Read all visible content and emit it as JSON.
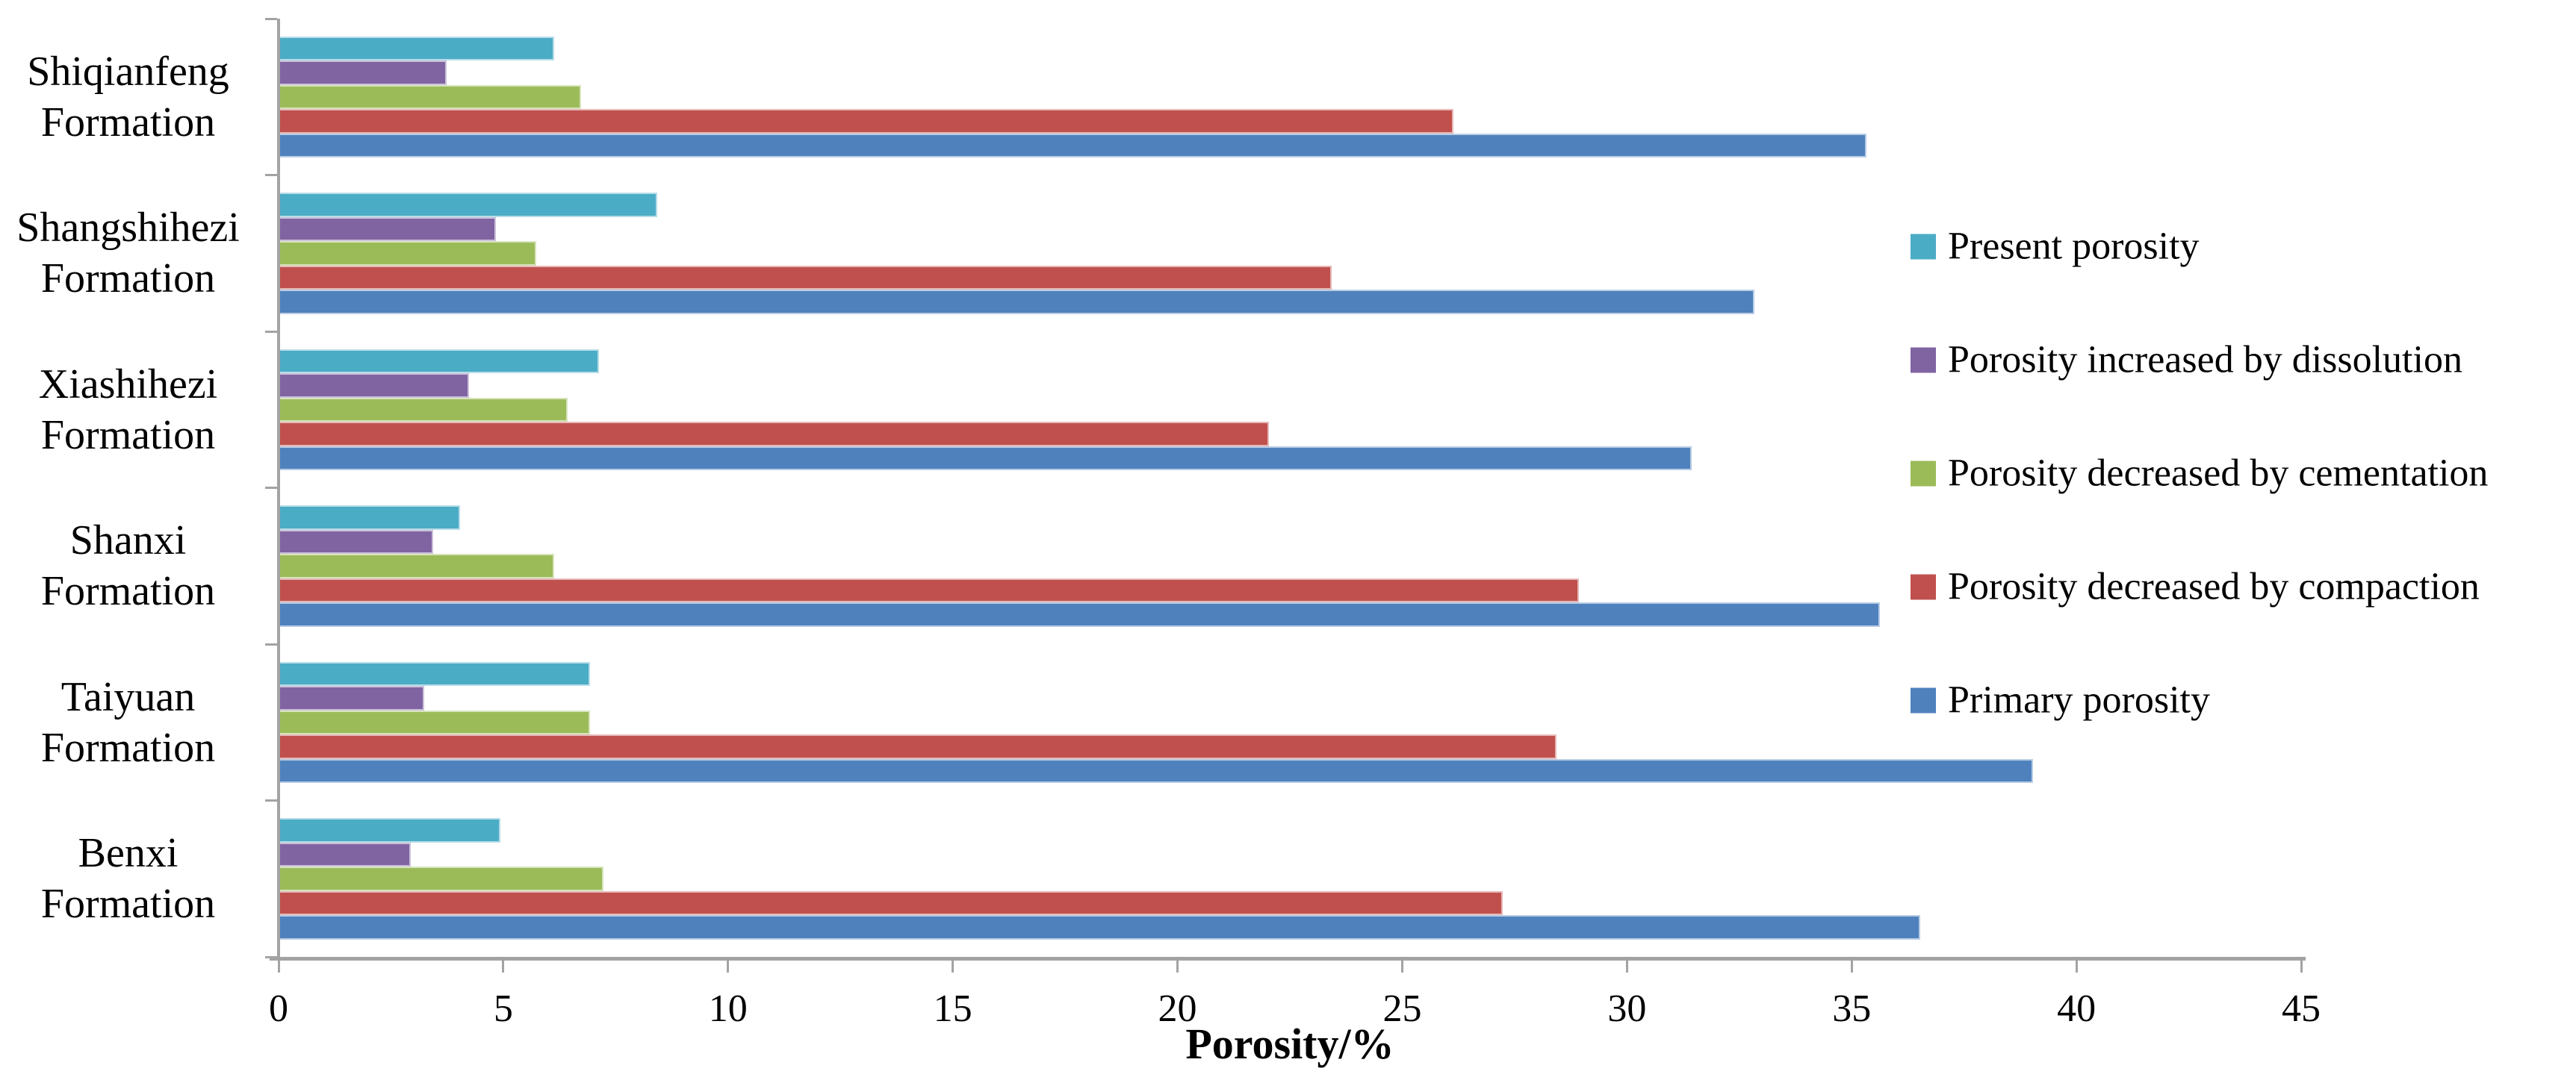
{
  "chart_data": {
    "type": "bar",
    "orientation": "horizontal",
    "title": "",
    "xlabel": "Porosity/%",
    "ylabel": "",
    "xlim": [
      0,
      45
    ],
    "xticks": [
      0,
      5,
      10,
      15,
      20,
      25,
      30,
      35,
      40,
      45
    ],
    "grid": "off",
    "legend_position": "right",
    "axis_color": "#a3a3a3",
    "text_color": "#000000",
    "categories": [
      "Shiqianfeng Formation",
      "Shangshihezi Formation",
      "Xiashihezi Formation",
      "Shanxi Formation",
      "Taiyuan Formation",
      "Benxi Formation"
    ],
    "series": [
      {
        "name": "Present porosity",
        "color": "#4bacc6",
        "border_color": "#b7dde8",
        "values": [
          6.1,
          8.4,
          7.1,
          4.0,
          6.9,
          4.9
        ]
      },
      {
        "name": "Porosity increased by dissolution",
        "color": "#8064a2",
        "border_color": "#ccc1da",
        "values": [
          3.7,
          4.8,
          4.2,
          3.4,
          3.2,
          2.9
        ]
      },
      {
        "name": "Porosity decreased by cementation",
        "color": "#9bbb59",
        "border_color": "#d7e4bd",
        "values": [
          6.7,
          5.7,
          6.4,
          6.1,
          6.9,
          7.2
        ]
      },
      {
        "name": "Porosity decreased by compaction",
        "color": "#c0504d",
        "border_color": "#e6b9b8",
        "values": [
          26.1,
          23.4,
          22.0,
          28.9,
          28.4,
          27.2
        ]
      },
      {
        "name": "Primary porosity",
        "color": "#4f81bd",
        "border_color": "#b9cde5",
        "values": [
          35.3,
          32.8,
          31.4,
          35.6,
          39.0,
          36.5
        ]
      }
    ]
  }
}
